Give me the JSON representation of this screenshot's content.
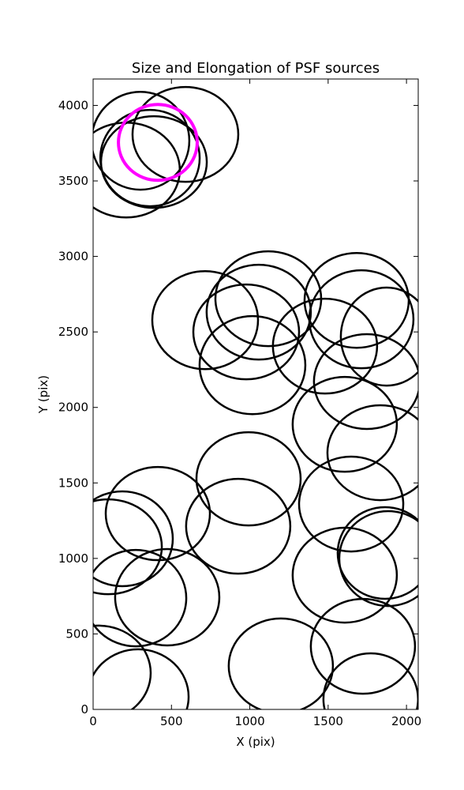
{
  "chart_data": {
    "type": "ellipse",
    "title": "Size and Elongation of PSF sources",
    "x_label": "X (pix)",
    "y_label": "Y (pix)",
    "xlim": [
      0,
      2075
    ],
    "ylim": [
      0,
      4175
    ],
    "xticks": [
      0,
      500,
      1000,
      1500,
      2000
    ],
    "yticks": [
      0,
      500,
      1000,
      1500,
      2000,
      2500,
      3000,
      3500,
      4000
    ],
    "ellipses": {
      "color": "#000000",
      "x": [
        302,
        589,
        211,
        363,
        388,
        715,
        1118,
        1057,
        977,
        1017,
        1480,
        1682,
        1712,
        1873,
        1747,
        1606,
        1833,
        992,
        926,
        413,
        186,
        96,
        272,
        473,
        1647,
        1883,
        1863,
        1606,
        1722,
        1198,
        1772,
        287,
        35
      ],
      "y": [
        3766,
        3808,
        3572,
        3651,
        3625,
        2578,
        2720,
        2631,
        2500,
        2280,
        2406,
        2709,
        2584,
        2469,
        2171,
        1888,
        1700,
        1527,
        1213,
        1297,
        1130,
        1077,
        737,
        743,
        1360,
        999,
        1036,
        889,
        418,
        288,
        68,
        84,
        241
      ],
      "width": [
        624,
        675,
        685,
        634,
        675,
        675,
        675,
        665,
        675,
        675,
        665,
        665,
        665,
        584,
        675,
        665,
        675,
        665,
        665,
        665,
        645,
        685,
        645,
        665,
        665,
        624,
        604,
        665,
        665,
        665,
        604,
        645,
        665
      ],
      "height": [
        648,
        628,
        628,
        638,
        607,
        649,
        628,
        628,
        628,
        649,
        628,
        628,
        649,
        649,
        628,
        628,
        628,
        617,
        628,
        617,
        628,
        628,
        638,
        638,
        628,
        628,
        607,
        628,
        628,
        628,
        607,
        628,
        628
      ]
    },
    "highlight": {
      "color": "#ff00ff",
      "x": [
        413
      ],
      "y": [
        3755
      ],
      "width": [
        503
      ],
      "height": [
        502
      ]
    }
  }
}
